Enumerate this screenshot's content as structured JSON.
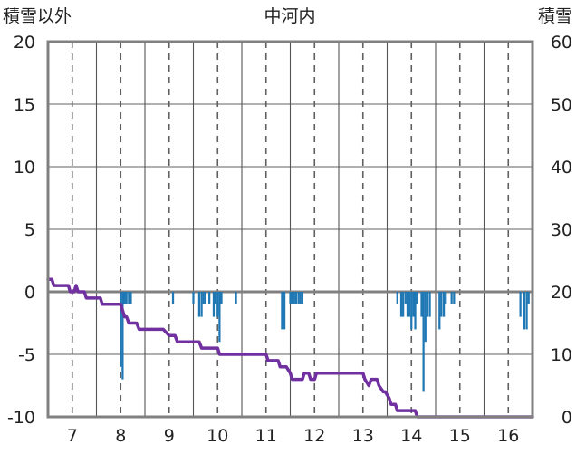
{
  "chart_data": {
    "type": "bar",
    "title": "中河内",
    "left_axis_label": "積雪以外",
    "right_axis_label": "積雪",
    "left_ylim": [
      -10,
      20
    ],
    "left_yticks": [
      "-10",
      "-5",
      "0",
      "5",
      "10",
      "15",
      "20"
    ],
    "right_ylim": [
      0,
      60
    ],
    "right_yticks": [
      "0",
      "10",
      "20",
      "30",
      "40",
      "50",
      "60"
    ],
    "xlim": [
      6.5,
      16.5
    ],
    "xticks": [
      "7",
      "8",
      "9",
      "10",
      "11",
      "12",
      "13",
      "14",
      "15",
      "16"
    ],
    "grid": true,
    "colors": {
      "bars": "#1f77b4",
      "line": "#7030a0",
      "frame": "#808080",
      "zero_line": "#808080"
    },
    "series": [
      {
        "type": "bar",
        "axis": "left",
        "x": [
          8.0,
          8.04,
          8.08,
          8.12,
          8.17,
          8.21,
          9.08,
          9.5,
          9.62,
          9.67,
          9.71,
          9.75,
          9.83,
          9.92,
          9.96,
          10.0,
          10.04,
          10.08,
          10.38,
          11.33,
          11.38,
          11.5,
          11.54,
          11.58,
          11.62,
          11.67,
          11.71,
          11.75,
          13.71,
          13.79,
          13.83,
          13.88,
          13.92,
          13.96,
          14.0,
          14.04,
          14.08,
          14.12,
          14.21,
          14.25,
          14.29,
          14.33,
          14.38,
          14.58,
          14.62,
          14.67,
          14.71,
          14.83,
          14.88,
          16.25,
          16.33,
          16.38,
          16.42
        ],
        "values": [
          -6,
          -7,
          -1,
          -1,
          -1,
          -1,
          -1,
          -1,
          -2,
          -2,
          -1,
          -1,
          -1,
          -2,
          -1,
          -2,
          -4,
          -1,
          -1,
          -3,
          -3,
          -1,
          -1,
          -1,
          -1,
          -1,
          -1,
          -1,
          -1,
          -2,
          -2,
          -1,
          -2,
          -2,
          -3,
          -2,
          -3,
          -1,
          -2,
          -8,
          -4,
          -2,
          -2,
          -3,
          -2,
          -2,
          -1,
          -1,
          -1,
          -2,
          -3,
          -3,
          -1
        ]
      },
      {
        "type": "line",
        "axis": "right",
        "x": [
          6.5,
          6.58,
          6.62,
          6.92,
          6.96,
          7.04,
          7.08,
          7.12,
          7.17,
          7.25,
          7.29,
          7.58,
          7.62,
          7.88,
          7.92,
          7.96,
          8.0,
          8.04,
          8.08,
          8.12,
          8.17,
          8.21,
          8.25,
          8.33,
          8.38,
          8.83,
          8.88,
          9.0,
          9.04,
          9.12,
          9.17,
          9.58,
          9.62,
          9.67,
          9.71,
          10.0,
          10.04,
          10.92,
          10.96,
          11.0,
          11.04,
          11.08,
          11.12,
          11.25,
          11.29,
          11.38,
          11.42,
          11.5,
          11.54,
          11.75,
          11.79,
          11.88,
          11.92,
          12.0,
          12.04,
          12.08,
          12.12,
          12.92,
          12.96,
          13.0,
          13.04,
          13.12,
          13.17,
          13.29,
          13.33,
          13.42,
          13.46,
          13.54,
          13.58,
          13.67,
          13.71,
          13.96,
          14.0,
          14.08,
          14.12,
          16.5
        ],
        "values": [
          22,
          22,
          21,
          21,
          20,
          20,
          21,
          20,
          20,
          20,
          19,
          19,
          18,
          18,
          18,
          18,
          18,
          17,
          16,
          16,
          15,
          15,
          15,
          15,
          14,
          14,
          14,
          13,
          13,
          13,
          12,
          12,
          12,
          11,
          11,
          11,
          10,
          10,
          10,
          10,
          9,
          9,
          9,
          9,
          8,
          8,
          8,
          7,
          6,
          6,
          7,
          7,
          6,
          6,
          7,
          7,
          7,
          7,
          7,
          7,
          6,
          5,
          6,
          6,
          5,
          4,
          4,
          3,
          2,
          2,
          1,
          1,
          1,
          1,
          0,
          0
        ]
      }
    ]
  }
}
